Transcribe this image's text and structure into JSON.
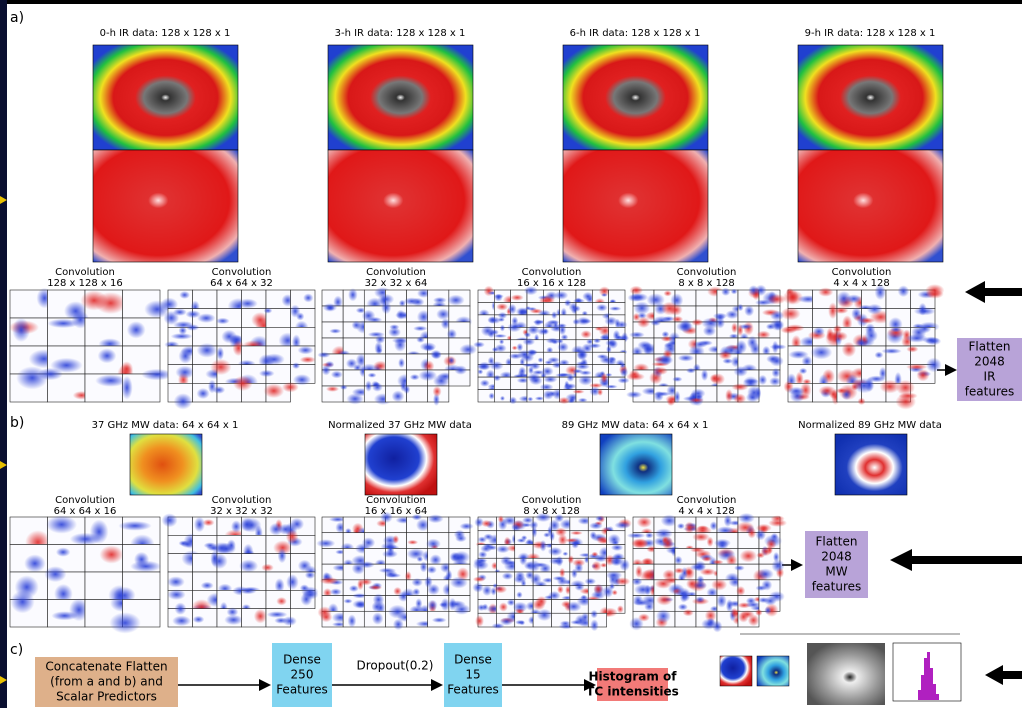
{
  "panels": {
    "a": {
      "label": "a)",
      "inputs": [
        "0-h IR data: 128 x 128 x 1",
        "3-h IR data: 128 x 128 x 1",
        "6-h IR data: 128 x 128 x 1",
        "9-h IR data: 128 x 128 x 1"
      ],
      "convolutions": [
        {
          "name": "Convolution",
          "shape": "128 x 128 x 16"
        },
        {
          "name": "Convolution",
          "shape": "64 x 64 x 32"
        },
        {
          "name": "Convolution",
          "shape": "32 x 32 x 64"
        },
        {
          "name": "Convolution",
          "shape": "16 x 16 x 128"
        },
        {
          "name": "Convolution",
          "shape": "8 x 8 x 128"
        },
        {
          "name": "Convolution",
          "shape": "4 x 4 x 128"
        }
      ],
      "flatten": [
        "Flatten",
        "2048",
        "IR",
        "features"
      ]
    },
    "b": {
      "label": "b)",
      "inputs": [
        "37 GHz MW data: 64 x 64 x 1",
        "Normalized 37 GHz MW data",
        "89 GHz MW data: 64 x 64 x 1",
        "Normalized 89 GHz MW data"
      ],
      "convolutions": [
        {
          "name": "Convolution",
          "shape": "64 x 64 x 16"
        },
        {
          "name": "Convolution",
          "shape": "32 x 32 x 32"
        },
        {
          "name": "Convolution",
          "shape": "16 x 16 x 64"
        },
        {
          "name": "Convolution",
          "shape": "8 x 8 x 128"
        },
        {
          "name": "Convolution",
          "shape": "4 x 4 x 128"
        }
      ],
      "flatten": [
        "Flatten",
        "2048",
        "MW",
        "features"
      ]
    },
    "c": {
      "label": "c)",
      "concatenate": [
        "Concatenate Flatten",
        "(from a and b) and",
        "Scalar Predictors"
      ],
      "dense1": [
        "Dense",
        "250",
        "Features"
      ],
      "dropout": "Dropout(0.2)",
      "dense2": [
        "Dense",
        "15",
        "Features"
      ],
      "output": [
        "Histogram of",
        "TC intensities"
      ]
    }
  }
}
